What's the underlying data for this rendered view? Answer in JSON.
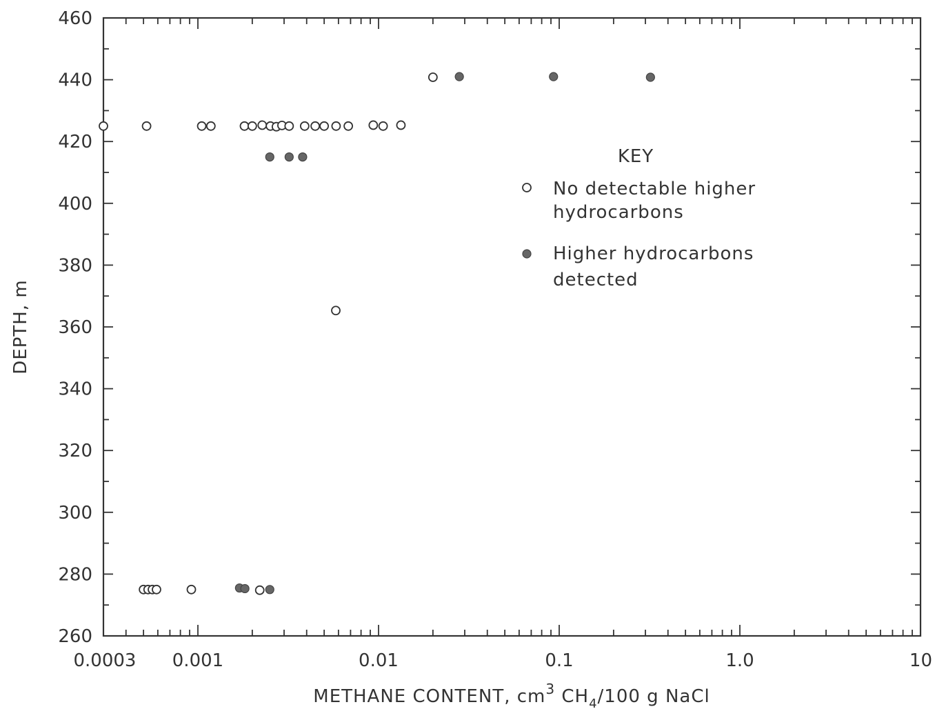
{
  "chart_data": {
    "type": "scatter",
    "xscale": "log",
    "xlim": [
      0.0003,
      10
    ],
    "ylim": [
      260,
      460
    ],
    "x_tick_labels": [
      "0.0003",
      "0.001",
      "0.01",
      "0.1",
      "1.0",
      "10"
    ],
    "y_tick_labels": [
      "260",
      "280",
      "300",
      "320",
      "340",
      "360",
      "380",
      "400",
      "420",
      "440",
      "460"
    ],
    "x_tick_values": [
      0.0003,
      0.001,
      0.01,
      0.1,
      1,
      10
    ],
    "y_tick_values": [
      260,
      280,
      300,
      320,
      340,
      360,
      380,
      400,
      420,
      440,
      460
    ],
    "xlabel": {
      "prefix": "METHANE CONTENT, cm",
      "sup": "3",
      "mid": " CH",
      "sub": "4",
      "suffix": "/100 g NaCl"
    },
    "ylabel": "DEPTH, m",
    "legend": {
      "title": "KEY",
      "position": "right",
      "entries": [
        {
          "style": "open",
          "line1": "No detectable higher",
          "line2": "hydrocarbons"
        },
        {
          "style": "filled",
          "line1": "Higher hydrocarbons",
          "line2": "detected"
        }
      ]
    },
    "series": [
      {
        "style": "open",
        "points": [
          {
            "x": 0.0003,
            "y": 425
          },
          {
            "x": 0.00052,
            "y": 425
          },
          {
            "x": 0.00105,
            "y": 425
          },
          {
            "x": 0.00118,
            "y": 425
          },
          {
            "x": 0.00181,
            "y": 425
          },
          {
            "x": 0.002,
            "y": 425
          },
          {
            "x": 0.00227,
            "y": 425.3
          },
          {
            "x": 0.00252,
            "y": 425
          },
          {
            "x": 0.00272,
            "y": 424.8
          },
          {
            "x": 0.00292,
            "y": 425.2
          },
          {
            "x": 0.0032,
            "y": 425
          },
          {
            "x": 0.0039,
            "y": 425
          },
          {
            "x": 0.00446,
            "y": 425
          },
          {
            "x": 0.005,
            "y": 425
          },
          {
            "x": 0.00582,
            "y": 425
          },
          {
            "x": 0.0068,
            "y": 425
          },
          {
            "x": 0.00935,
            "y": 425.3
          },
          {
            "x": 0.0106,
            "y": 425
          },
          {
            "x": 0.0133,
            "y": 425.3
          },
          {
            "x": 0.02,
            "y": 440.8
          },
          {
            "x": 0.0058,
            "y": 365.3
          },
          {
            "x": 0.0005,
            "y": 275
          },
          {
            "x": 0.00053,
            "y": 275
          },
          {
            "x": 0.00056,
            "y": 275
          },
          {
            "x": 0.00059,
            "y": 275
          },
          {
            "x": 0.00092,
            "y": 275
          },
          {
            "x": 0.0022,
            "y": 274.8
          }
        ]
      },
      {
        "style": "filled",
        "points": [
          {
            "x": 0.028,
            "y": 441
          },
          {
            "x": 0.093,
            "y": 441
          },
          {
            "x": 0.32,
            "y": 440.8
          },
          {
            "x": 0.0025,
            "y": 415
          },
          {
            "x": 0.0032,
            "y": 415
          },
          {
            "x": 0.0038,
            "y": 415
          },
          {
            "x": 0.0017,
            "y": 275.5
          },
          {
            "x": 0.00182,
            "y": 275.3
          },
          {
            "x": 0.0025,
            "y": 275
          }
        ]
      }
    ]
  }
}
